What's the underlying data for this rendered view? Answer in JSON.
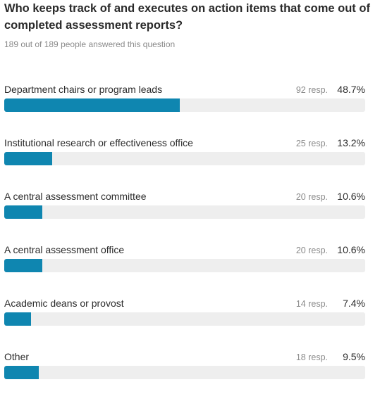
{
  "question": {
    "title": "Who keeps track of and executes on action items that come out of completed assessment reports?",
    "answered": "189 out of 189 people answered this question"
  },
  "colors": {
    "bar_fill": "#0f86b0",
    "bar_track": "#eeeeee"
  },
  "chart_data": {
    "type": "bar",
    "orientation": "horizontal",
    "title": "Who keeps track of and executes on action items that come out of completed assessment reports?",
    "xlabel": "",
    "ylabel": "",
    "xlim": [
      0,
      100
    ],
    "grid": false,
    "categories": [
      "Department chairs or program leads",
      "Institutional research or effectiveness office",
      "A central assessment committee",
      "A central assessment office",
      "Academic deans or provost",
      "Other"
    ],
    "responses": [
      92,
      25,
      20,
      20,
      14,
      18
    ],
    "values": [
      48.7,
      13.2,
      10.6,
      10.6,
      7.4,
      9.5
    ],
    "rows": [
      {
        "label": "Department chairs or program leads",
        "count_text": "92 resp.",
        "pct_text": "48.7%",
        "value": 48.7
      },
      {
        "label": "Institutional research or effectiveness office",
        "count_text": "25 resp.",
        "pct_text": "13.2%",
        "value": 13.2
      },
      {
        "label": "A central assessment committee",
        "count_text": "20 resp.",
        "pct_text": "10.6%",
        "value": 10.6
      },
      {
        "label": "A central assessment office",
        "count_text": "20 resp.",
        "pct_text": "10.6%",
        "value": 10.6
      },
      {
        "label": "Academic deans or provost",
        "count_text": "14 resp.",
        "pct_text": "7.4%",
        "value": 7.4
      },
      {
        "label": "Other",
        "count_text": "18 resp.",
        "pct_text": "9.5%",
        "value": 9.5
      }
    ]
  }
}
